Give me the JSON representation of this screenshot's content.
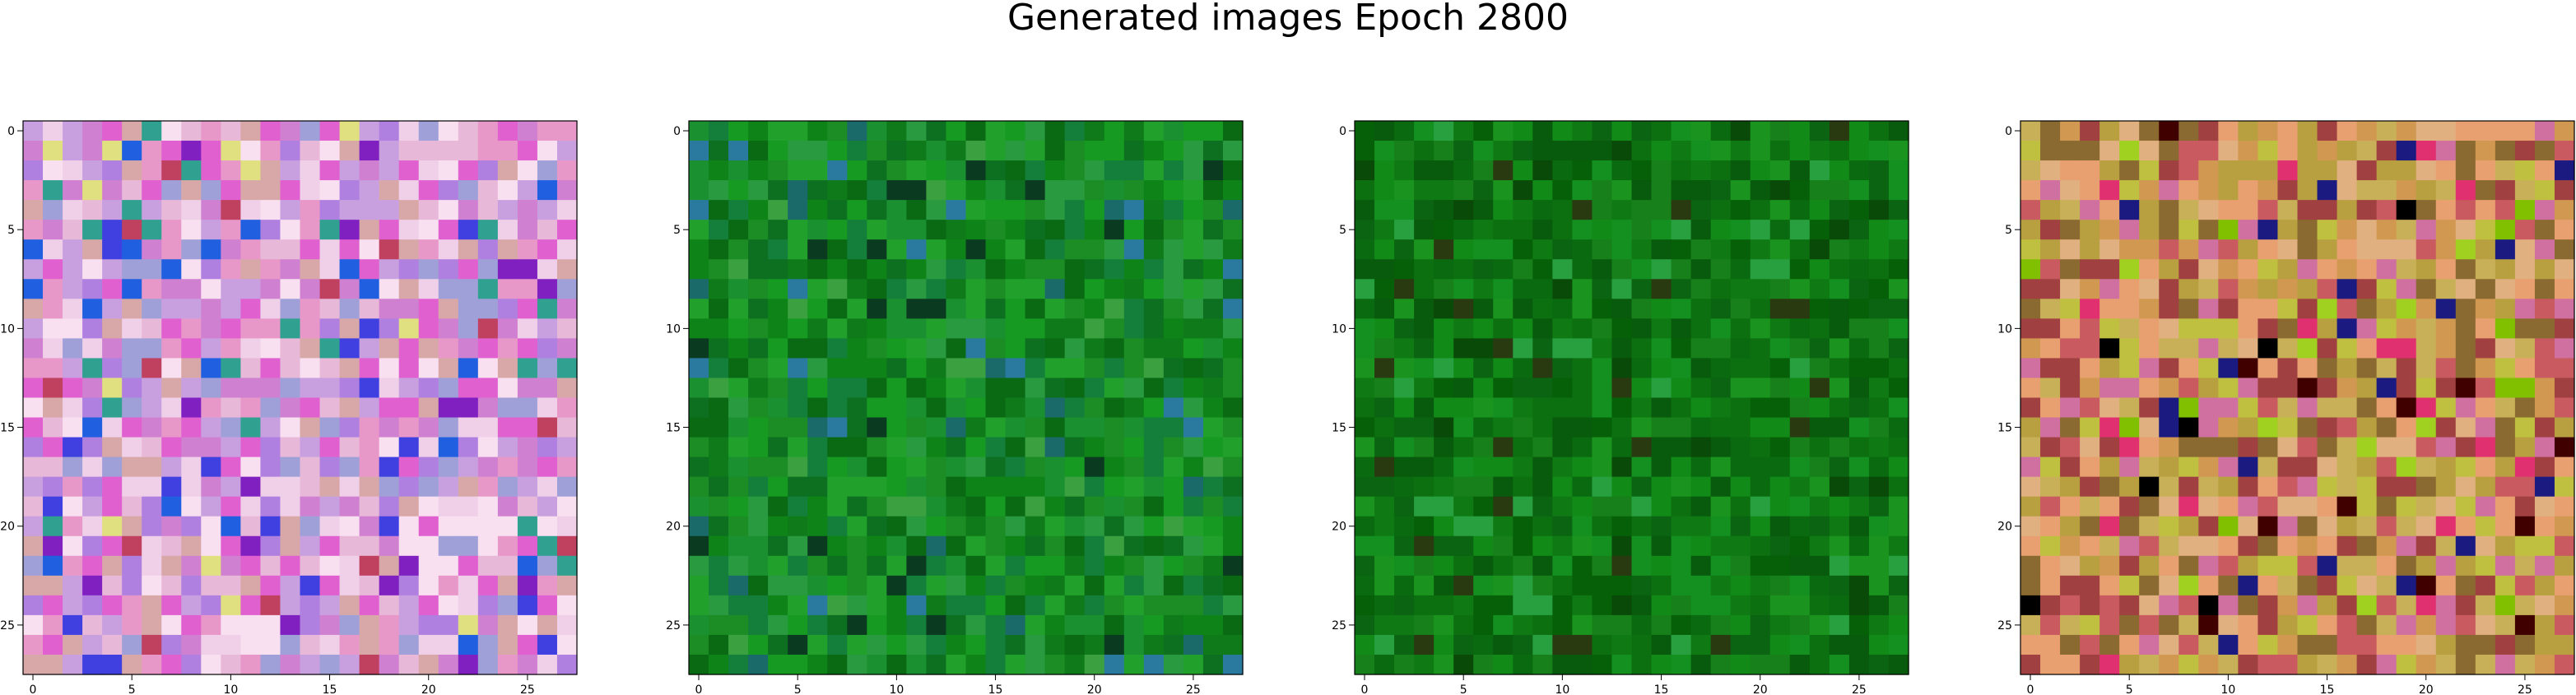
{
  "title": "Generated images Epoch 2800",
  "chart_data": {
    "type": "heatmap",
    "title": "Generated images Epoch 2800",
    "image_size": 28,
    "xticks": [
      0,
      5,
      10,
      15,
      20,
      25
    ],
    "yticks": [
      0,
      5,
      10,
      15,
      20,
      25
    ],
    "xlim": [
      -0.5,
      27.5
    ],
    "ylim": [
      27.5,
      -0.5
    ],
    "grid": false,
    "images": [
      {
        "palette": [
          "#e8b8d8",
          "#d080d0",
          "#c8a0e0",
          "#f0d0e8",
          "#e060d0",
          "#b080e0",
          "#f8e0f0",
          "#d8a8a8",
          "#a0a0d8",
          "#e898c8"
        ],
        "accents": [
          "#4040e0",
          "#8020c0",
          "#30a090",
          "#e0e080",
          "#2060e0",
          "#c04060"
        ]
      },
      {
        "palette": [
          "#1c8c24",
          "#0f7a1a",
          "#169a22",
          "#0a6a14",
          "#22a02c",
          "#137f3a",
          "#0d7020",
          "#1a9030",
          "#2a9a40",
          "#0e8418"
        ],
        "accents": [
          "#2a7aa0",
          "#0a3a20",
          "#1a6a6a",
          "#3aa040"
        ]
      },
      {
        "palette": [
          "#0f7a14",
          "#0a6a10",
          "#118a18",
          "#066008",
          "#1a941e",
          "#0c7010",
          "#085a0c",
          "#149020",
          "#0b6412",
          "#17801a"
        ],
        "accents": [
          "#2a3a10",
          "#28a040",
          "#0a4a08"
        ]
      },
      {
        "palette": [
          "#d09850",
          "#c85a60",
          "#b8a040",
          "#e8a070",
          "#c0c040",
          "#a04040",
          "#e0b080",
          "#d070a0",
          "#8a6a30",
          "#c8b058"
        ],
        "accents": [
          "#1a1a80",
          "#000000",
          "#80c000",
          "#e03070",
          "#400000",
          "#a0d020"
        ]
      }
    ]
  }
}
